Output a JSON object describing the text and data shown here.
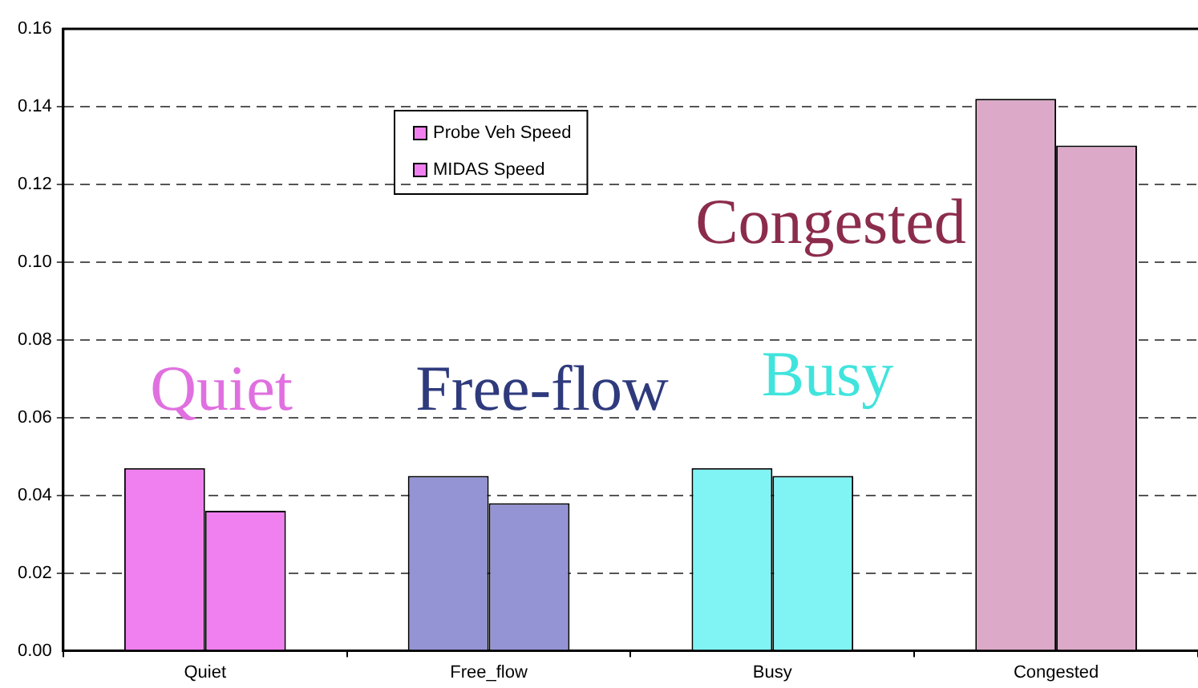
{
  "chart_data": {
    "type": "bar",
    "categories": [
      "Quiet",
      "Free_flow",
      "Busy",
      "Congested"
    ],
    "series": [
      {
        "name": "Probe Veh Speed",
        "colors": [
          "#f080f0",
          "#9494d4",
          "#80f4f4",
          "#dcaac8"
        ],
        "values": [
          0.047,
          0.045,
          0.047,
          0.142
        ]
      },
      {
        "name": "MIDAS Speed",
        "colors": [
          "#f080f0",
          "#9494d4",
          "#80f4f4",
          "#dcaac8"
        ],
        "values": [
          0.036,
          0.038,
          0.045,
          0.13
        ]
      }
    ],
    "ylim": [
      0,
      0.16
    ],
    "yticks": [
      {
        "value": 0,
        "label": "0.00"
      },
      {
        "value": 0.02,
        "label": "0.02"
      },
      {
        "value": 0.04,
        "label": "0.04"
      },
      {
        "value": 0.06,
        "label": "0.06"
      },
      {
        "value": 0.08,
        "label": "0.08"
      },
      {
        "value": 0.1,
        "label": "0.10"
      },
      {
        "value": 0.12,
        "label": "0.12"
      },
      {
        "value": 0.14,
        "label": "0.14"
      },
      {
        "value": 0.16,
        "label": "0.16"
      }
    ],
    "grid": "y",
    "legend": "top",
    "annotations": [
      "Quiet",
      "Free-flow",
      "Busy",
      "Congested"
    ]
  }
}
